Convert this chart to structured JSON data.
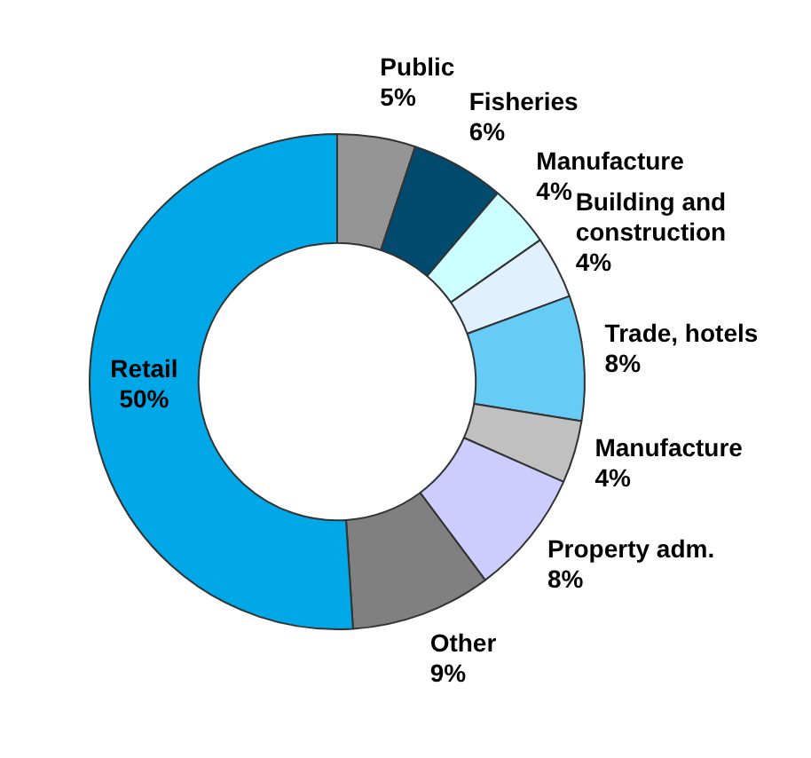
{
  "chart_data": {
    "type": "donut",
    "categories": [
      "Public",
      "Fisheries",
      "Manufacture",
      "Building and construction",
      "Trade, hotels",
      "Manufacture",
      "Property adm.",
      "Other",
      "Retail"
    ],
    "values": [
      5,
      6,
      4,
      4,
      8,
      4,
      8,
      9,
      50
    ],
    "value_labels": [
      "5%",
      "6%",
      "4%",
      "4%",
      "8%",
      "4%",
      "8%",
      "9%",
      "50%"
    ],
    "colors": [
      "#959595",
      "#004b6e",
      "#ccffff",
      "#e0f0ff",
      "#66ccf5",
      "#c0c0c0",
      "#ccccff",
      "#808080",
      "#00a8e8"
    ],
    "legend": false
  }
}
